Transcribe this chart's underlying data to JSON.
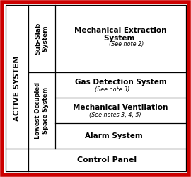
{
  "outer_border_color": "#cc0000",
  "background_color": "#ffffff",
  "col1_label": "ACTIVE SYSTEM",
  "col2_row1_label": "Sub-Slab\nSystem",
  "col2_row2_label": "Lowest Occupied\nSpace System",
  "mech_extraction_main": "Mechanical Extraction\nSystem ",
  "mech_extraction_note": "(See note 2)",
  "gas_main": "Gas Detection System",
  "gas_note": "(See note 3)",
  "mech_vent_main": "Mechanical Ventilation",
  "mech_vent_note": "(See notes 3, 4, 5)",
  "alarm": "Alarm System",
  "control": "Control Panel",
  "figsize": [
    2.7,
    2.5
  ],
  "dpi": 100
}
